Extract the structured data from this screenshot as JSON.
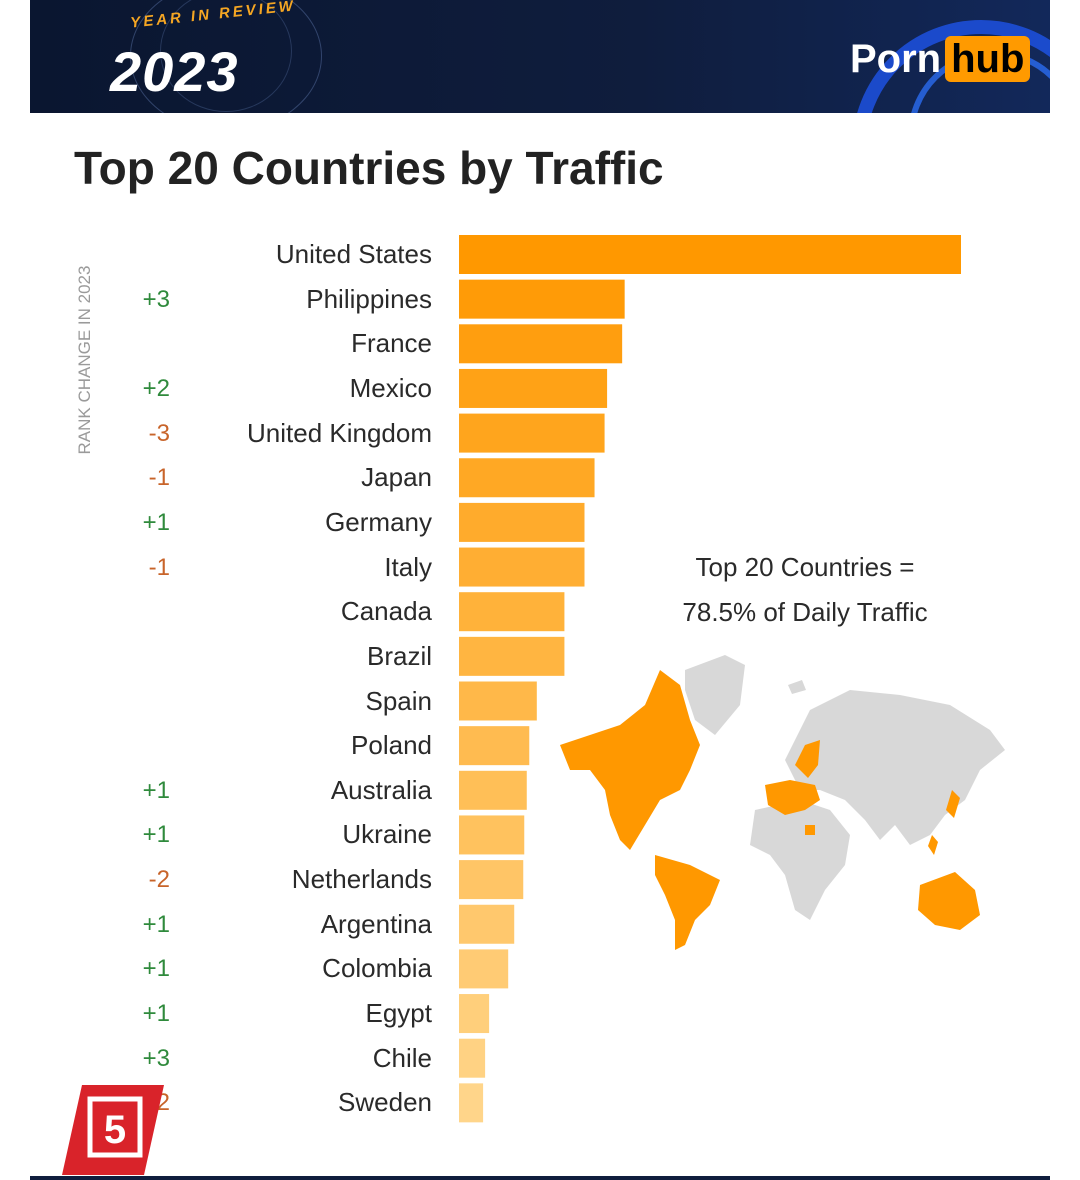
{
  "header": {
    "kicker": "YEAR IN REVIEW",
    "year": "2023",
    "logo_left": "Porn",
    "logo_right": "hub"
  },
  "title": "Top 20 Countries by Traffic",
  "rank_axis_label": "RANK CHANGE IN 2023",
  "annotation": {
    "line1": "Top 20 Countries =",
    "line2": "78.5% of Daily Traffic"
  },
  "badge_number": "5",
  "colors": {
    "bar_dark": "#ff9800",
    "bar_light": "#ffd58a",
    "map_highlight": "#ff9800",
    "map_other": "#d8d8d8",
    "positive": "#2f8a3c",
    "negative": "#c8642a"
  },
  "chart_data": {
    "type": "bar",
    "orientation": "horizontal",
    "title": "Top 20 Countries by Traffic",
    "xlabel": "",
    "ylabel": "",
    "grid": false,
    "categories": [
      "United States",
      "Philippines",
      "France",
      "Mexico",
      "United Kingdom",
      "Japan",
      "Germany",
      "Italy",
      "Canada",
      "Brazil",
      "Spain",
      "Poland",
      "Australia",
      "Ukraine",
      "Netherlands",
      "Argentina",
      "Colombia",
      "Egypt",
      "Chile",
      "Sweden"
    ],
    "values": [
      100,
      33,
      32.5,
      29.5,
      29,
      27,
      25,
      25,
      21,
      21,
      15.5,
      14,
      13.5,
      13,
      12.8,
      11,
      9.8,
      6,
      5.2,
      4.8
    ],
    "xlim": [
      0,
      100
    ],
    "rank_change": [
      "",
      "+3",
      "",
      "+2",
      "-3",
      "-1",
      "+1",
      "-1",
      "",
      "",
      "",
      "",
      "+1",
      "+1",
      "-2",
      "+1",
      "+1",
      "+1",
      "+3",
      "-2"
    ]
  }
}
